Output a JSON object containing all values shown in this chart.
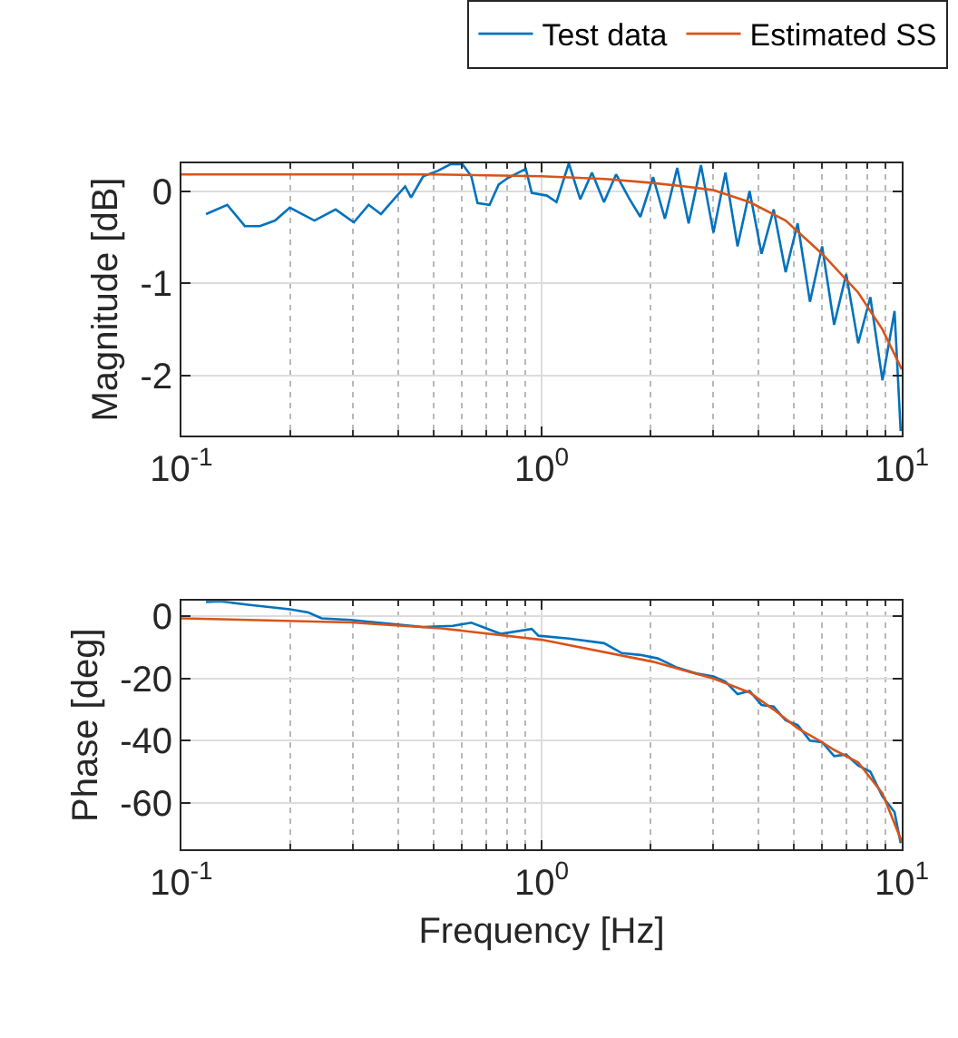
{
  "chart_data": [
    {
      "type": "line",
      "ylabel": "Magnitude [dB]",
      "log": "x",
      "grid": true,
      "legend": "top",
      "xlim": [
        0.1,
        10
      ],
      "xticks": [
        {
          "value": 0.1,
          "label": "10$^{-1}$"
        },
        {
          "value": 1,
          "label": "10$^{0}$"
        },
        {
          "value": 10,
          "label": "10$^{1}$"
        }
      ],
      "ylim": [
        -2.65,
        0.3
      ],
      "yticks": [
        -2,
        -1,
        0
      ],
      "series": [
        {
          "name": "Test data",
          "color": "#0072bd",
          "x": [
            0.117,
            0.134,
            0.15,
            0.165,
            0.182,
            0.2,
            0.234,
            0.268,
            0.301,
            0.331,
            0.358,
            0.418,
            0.434,
            0.469,
            0.516,
            0.558,
            0.603,
            0.638,
            0.664,
            0.717,
            0.76,
            0.805,
            0.904,
            0.939,
            1.035,
            1.1,
            1.19,
            1.28,
            1.38,
            1.49,
            1.61,
            1.75,
            1.88,
            2.04,
            2.2,
            2.38,
            2.56,
            2.77,
            3.0,
            3.24,
            3.5,
            3.78,
            4.08,
            4.41,
            4.76,
            5.14,
            5.56,
            6.01,
            6.49,
            7.01,
            7.57,
            8.18,
            8.84,
            9.55,
            9.93
          ],
          "values": [
            -0.25,
            -0.15,
            -0.38,
            -0.38,
            -0.32,
            -0.18,
            -0.32,
            -0.2,
            -0.34,
            -0.15,
            -0.25,
            0.05,
            -0.07,
            0.16,
            0.22,
            0.29,
            0.29,
            0.16,
            -0.13,
            -0.15,
            0.07,
            0.14,
            0.24,
            -0.02,
            -0.05,
            -0.12,
            0.3,
            -0.09,
            0.2,
            -0.12,
            0.18,
            -0.08,
            -0.28,
            0.15,
            -0.3,
            0.25,
            -0.35,
            0.28,
            -0.45,
            0.2,
            -0.6,
            0.0,
            -0.68,
            -0.2,
            -0.88,
            -0.35,
            -1.2,
            -0.6,
            -1.45,
            -0.9,
            -1.65,
            -1.15,
            -2.05,
            -1.3,
            -2.6
          ]
        },
        {
          "name": "Estimated SS",
          "color": "#d95319",
          "x": [
            0.1,
            0.3,
            0.5,
            1,
            1.5,
            2,
            2.5,
            3,
            3.78,
            4.76,
            6.01,
            7.57,
            8.84,
            10
          ],
          "values": [
            0.18,
            0.18,
            0.18,
            0.16,
            0.13,
            0.09,
            0.05,
            0.01,
            -0.12,
            -0.32,
            -0.68,
            -1.1,
            -1.5,
            -1.93
          ]
        }
      ]
    },
    {
      "type": "line",
      "xlabel": "Frequency [Hz]",
      "ylabel": "Phase [deg]",
      "log": "x",
      "grid": true,
      "xlim": [
        0.1,
        10
      ],
      "xticks": [
        {
          "value": 0.1,
          "label": "10$^{-1}$"
        },
        {
          "value": 1,
          "label": "10$^{0}$"
        },
        {
          "value": 10,
          "label": "10$^{1}$"
        }
      ],
      "ylim": [
        -75,
        5
      ],
      "yticks": [
        -60,
        -40,
        -20,
        0
      ],
      "series": [
        {
          "color": "#0072bd",
          "x": [
            0.117,
            0.128,
            0.153,
            0.2,
            0.225,
            0.245,
            0.295,
            0.469,
            0.567,
            0.638,
            0.77,
            0.939,
            0.98,
            1.19,
            1.49,
            1.67,
            1.88,
            2.1,
            2.38,
            2.7,
            3.0,
            3.24,
            3.5,
            3.78,
            4.08,
            4.41,
            4.76,
            5.14,
            5.56,
            6.01,
            6.49,
            7.01,
            7.57,
            8.18,
            8.84,
            9.55,
            9.93
          ],
          "values": [
            4.7,
            4.9,
            3.8,
            2.3,
            1.3,
            -0.6,
            -1.1,
            -3.4,
            -3,
            -2,
            -5.6,
            -4,
            -6.2,
            -7.1,
            -8.6,
            -11.8,
            -12.4,
            -13.5,
            -16.5,
            -18.4,
            -19.3,
            -21,
            -25,
            -24,
            -28.5,
            -29,
            -33.5,
            -35,
            -40,
            -40.5,
            -45,
            -44.5,
            -48,
            -50,
            -58,
            -63,
            -73
          ]
        },
        {
          "color": "#d95319",
          "x": [
            0.1,
            0.295,
            0.525,
            1,
            2.04,
            3.0,
            3.78,
            4.41,
            5.14,
            6.01,
            6.49,
            7.57,
            8.84,
            10
          ],
          "values": [
            -0.6,
            -1.9,
            -3.8,
            -7.5,
            -14.6,
            -20,
            -24.5,
            -30,
            -36,
            -40.5,
            -43,
            -47,
            -57,
            -72.5
          ]
        }
      ]
    }
  ]
}
